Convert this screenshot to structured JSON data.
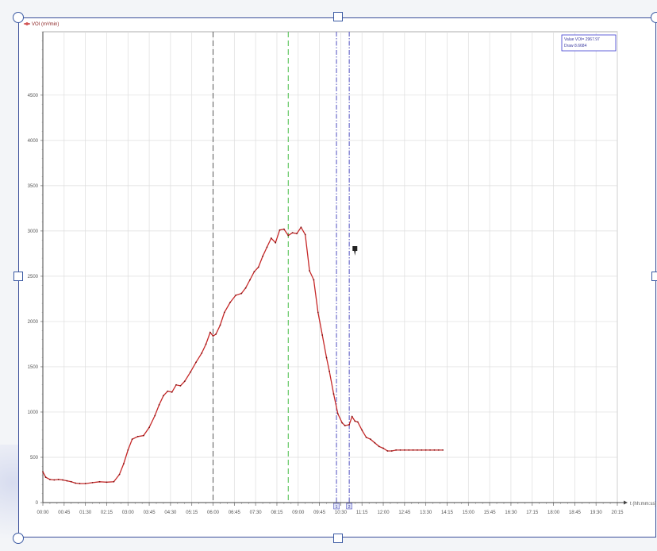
{
  "chart_data": {
    "type": "line",
    "series": [
      {
        "name": "VOI (m³/min)",
        "color": "#c62828",
        "x": [
          0,
          0.1,
          0.25,
          0.4,
          0.55,
          0.7,
          0.85,
          1.0,
          1.15,
          1.3,
          1.5,
          1.75,
          2.0,
          2.25,
          2.5,
          2.7,
          2.85,
          3.0,
          3.15,
          3.35,
          3.55,
          3.75,
          3.95,
          4.1,
          4.25,
          4.4,
          4.55,
          4.7,
          4.85,
          5.0,
          5.2,
          5.4,
          5.6,
          5.75,
          5.9,
          6.0,
          6.1,
          6.25,
          6.4,
          6.6,
          6.8,
          7.0,
          7.15,
          7.3,
          7.45,
          7.6,
          7.75,
          7.9,
          8.05,
          8.2,
          8.35,
          8.5,
          8.65,
          8.8,
          8.95,
          9.1,
          9.25,
          9.4,
          9.55,
          9.7,
          9.85,
          10.0,
          10.1,
          10.25,
          10.4,
          10.55,
          10.65,
          10.8,
          10.9,
          11.0,
          11.1,
          11.25,
          11.4,
          11.55,
          11.7,
          11.85,
          12.0,
          12.15,
          12.3,
          12.45,
          12.6,
          12.75,
          12.9,
          13.05,
          13.2,
          13.35,
          13.5,
          13.65,
          13.8,
          13.95,
          14.1
        ],
        "y": [
          340,
          280,
          255,
          250,
          255,
          250,
          240,
          230,
          215,
          210,
          210,
          220,
          230,
          225,
          230,
          310,
          430,
          580,
          700,
          730,
          740,
          830,
          960,
          1080,
          1180,
          1230,
          1220,
          1300,
          1290,
          1340,
          1440,
          1550,
          1650,
          1750,
          1880,
          1840,
          1860,
          1960,
          2100,
          2210,
          2290,
          2310,
          2370,
          2460,
          2550,
          2600,
          2720,
          2820,
          2920,
          2870,
          3010,
          3020,
          2950,
          2980,
          2970,
          3040,
          2960,
          2560,
          2460,
          2100,
          1850,
          1600,
          1450,
          1200,
          980,
          880,
          850,
          860,
          950,
          900,
          890,
          800,
          720,
          700,
          660,
          620,
          600,
          570,
          570,
          580,
          580,
          580,
          580,
          580,
          580,
          580,
          580,
          580,
          580,
          580,
          580
        ],
        "x_display_range": [
          0,
          14.1
        ]
      }
    ],
    "x_tick_labels": [
      "00:00",
      "00:45",
      "01:30",
      "02:15",
      "03:00",
      "03:45",
      "04:30",
      "05:15",
      "06:00",
      "06:45",
      "07:30",
      "08:15",
      "09:00",
      "09:45",
      "10:30",
      "11:15",
      "12:00",
      "12:45",
      "13:30",
      "14:15",
      "15:00",
      "15:45",
      "16:30",
      "17:15",
      "18:00",
      "18:45",
      "19:30",
      "20:15"
    ],
    "x_tick_step_hours": 0.75,
    "xlim": [
      0,
      20.25
    ],
    "x_unit_label": "t (hh:mm:ss)",
    "ylim": [
      0,
      5200
    ],
    "y_ticks": [
      0,
      500,
      1000,
      1500,
      2000,
      2500,
      3000,
      3500,
      4000,
      4500
    ],
    "ylabel": "",
    "xlabel": "",
    "grid": true,
    "legend": {
      "position": "top-left",
      "text": "VOI (m³/min)"
    },
    "cursor_box": {
      "position": "top-right",
      "lines": [
        "Value VOI= 2967.97",
        "Draw 8.6684"
      ]
    },
    "vertical_markers": [
      {
        "x": 6.0,
        "style": "dashed",
        "color": "#555555"
      },
      {
        "x": 8.65,
        "style": "dashed",
        "color": "#44bb44"
      },
      {
        "x": 10.35,
        "style": "dash-dot",
        "color": "#5050c0",
        "label": "1"
      },
      {
        "x": 10.8,
        "style": "dash-dot",
        "color": "#5050c0",
        "label": "2"
      }
    ]
  }
}
